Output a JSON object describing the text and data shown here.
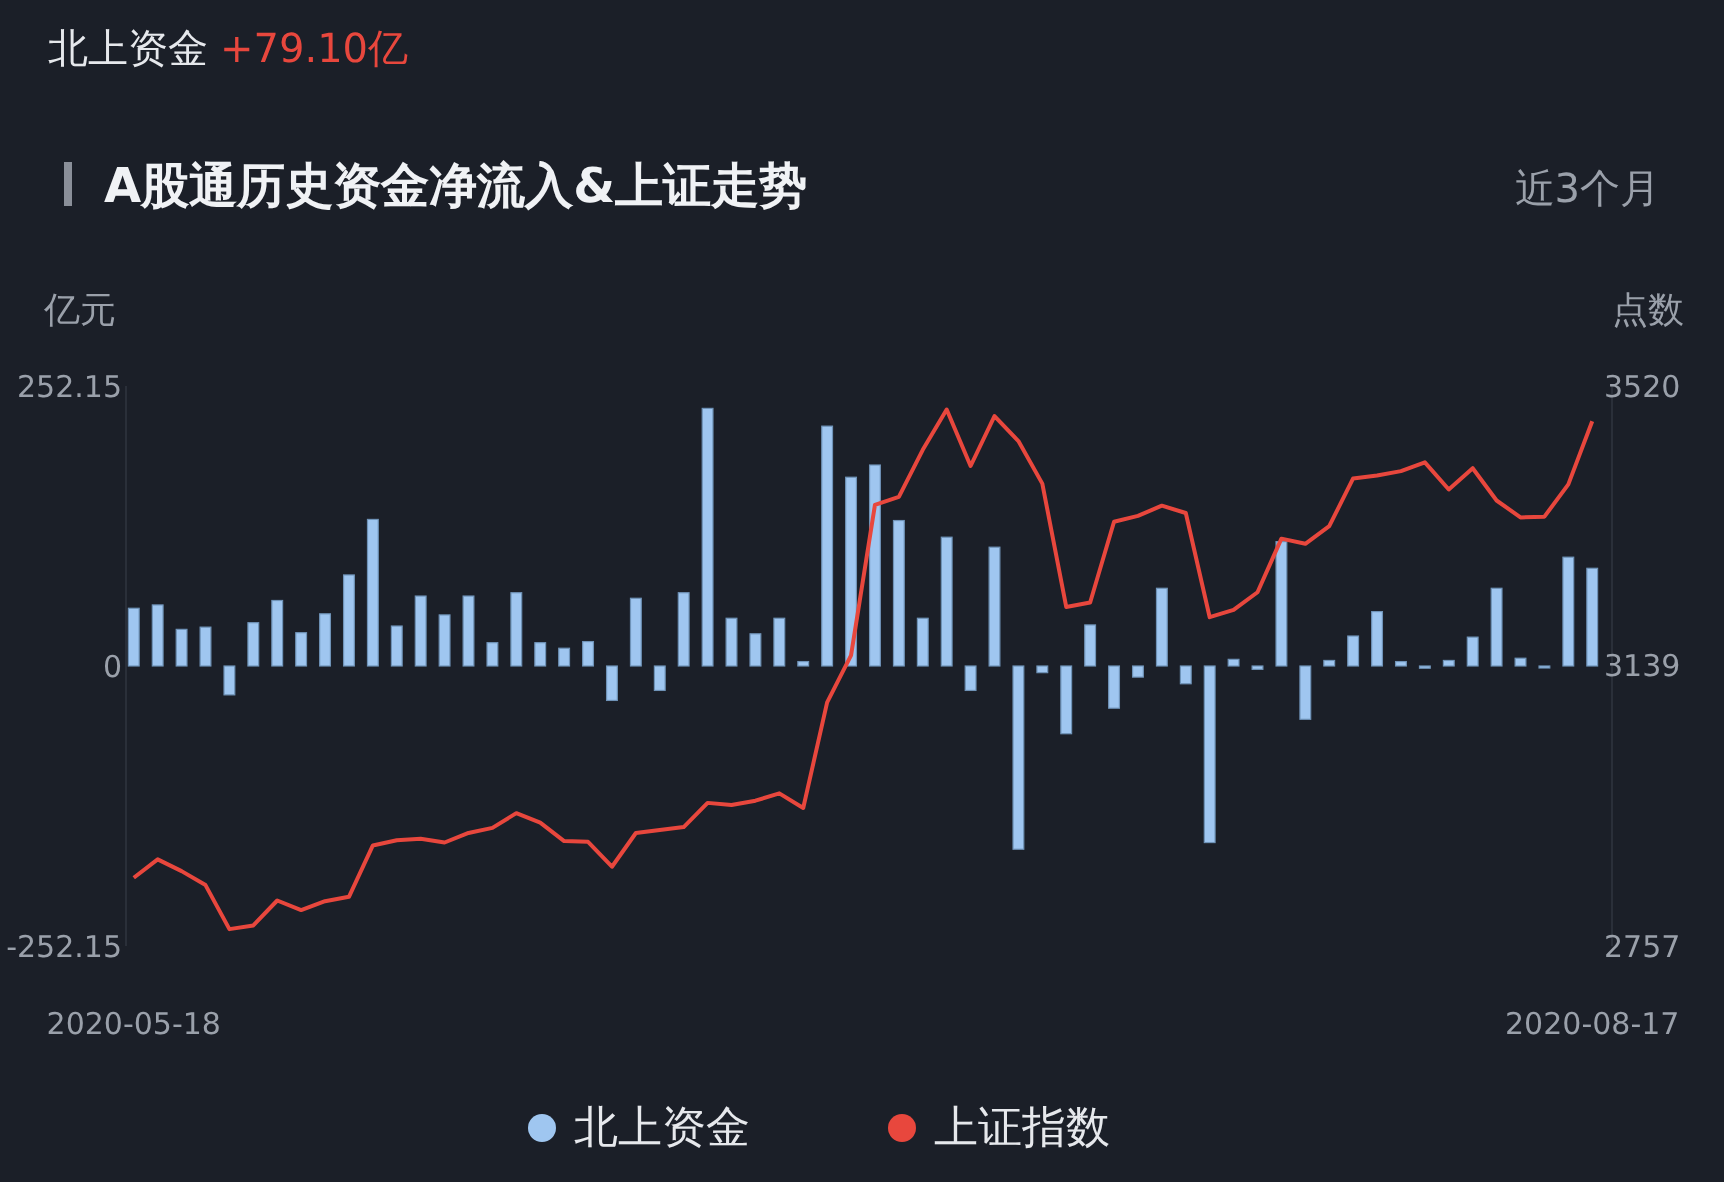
{
  "chart_data": {
    "type": "bar",
    "title": "A股通历史资金净流入&上证走势",
    "annotations": [
      "北上资金",
      "+79.10亿",
      "近3个月"
    ],
    "ylabel": "亿元",
    "y2label": "点数",
    "categories": [
      "2020-05-18",
      null,
      null,
      null,
      null,
      null,
      null,
      null,
      null,
      null,
      null,
      null,
      null,
      null,
      null,
      null,
      null,
      null,
      null,
      null,
      null,
      null,
      null,
      null,
      null,
      null,
      null,
      null,
      null,
      null,
      null,
      null,
      null,
      null,
      null,
      null,
      null,
      null,
      null,
      null,
      null,
      null,
      null,
      null,
      null,
      null,
      null,
      null,
      null,
      null,
      null,
      null,
      null,
      null,
      null,
      null,
      null,
      null,
      null,
      null,
      null,
      "2020-08-17"
    ],
    "ylim": [
      -252.15,
      252.15
    ],
    "yticks": [
      -252.15,
      0,
      252.15
    ],
    "y2lim": [
      2757,
      3520
    ],
    "y2ticks": [
      2757,
      3139,
      3520
    ],
    "grid": false,
    "legend": "bottom",
    "series": [
      {
        "name": "北上资金",
        "color": "#9fc6f0",
        "values": [
          52,
          55,
          33,
          35,
          -26,
          39,
          59,
          30,
          47,
          82,
          132,
          36,
          63,
          46,
          63,
          21,
          66,
          21,
          16,
          22,
          -31,
          61,
          -22,
          66,
          232,
          43,
          29,
          43,
          4,
          216,
          170,
          181,
          131,
          43,
          116,
          -22,
          107,
          -165,
          -6,
          -61,
          37,
          -38,
          -10,
          70,
          -16,
          -159,
          6,
          -3,
          112,
          -48,
          5,
          27,
          49,
          4,
          -2,
          5,
          26,
          70,
          7,
          0,
          98,
          88
        ]
      },
      {
        "name": "上证指数",
        "type": "line",
        "axis": "y2",
        "color": "#e8473d",
        "marker": "none",
        "values": [
          2850,
          2875,
          2859,
          2840,
          2780,
          2785,
          2819,
          2806,
          2818,
          2824,
          2894,
          2901,
          2903,
          2898,
          2911,
          2918,
          2938,
          2925,
          2900,
          2899,
          2865,
          2911,
          2915,
          2919,
          2952,
          2949,
          2955,
          2965,
          2945,
          3089,
          3153,
          3358,
          3369,
          3433,
          3488,
          3411,
          3479,
          3445,
          3387,
          3219,
          3225,
          3335,
          3343,
          3357,
          3347,
          3205,
          3215,
          3239,
          3312,
          3305,
          3329,
          3394,
          3398,
          3404,
          3416,
          3379,
          3408,
          3364,
          3341,
          3342,
          3386,
          3472
        ]
      }
    ]
  }
}
